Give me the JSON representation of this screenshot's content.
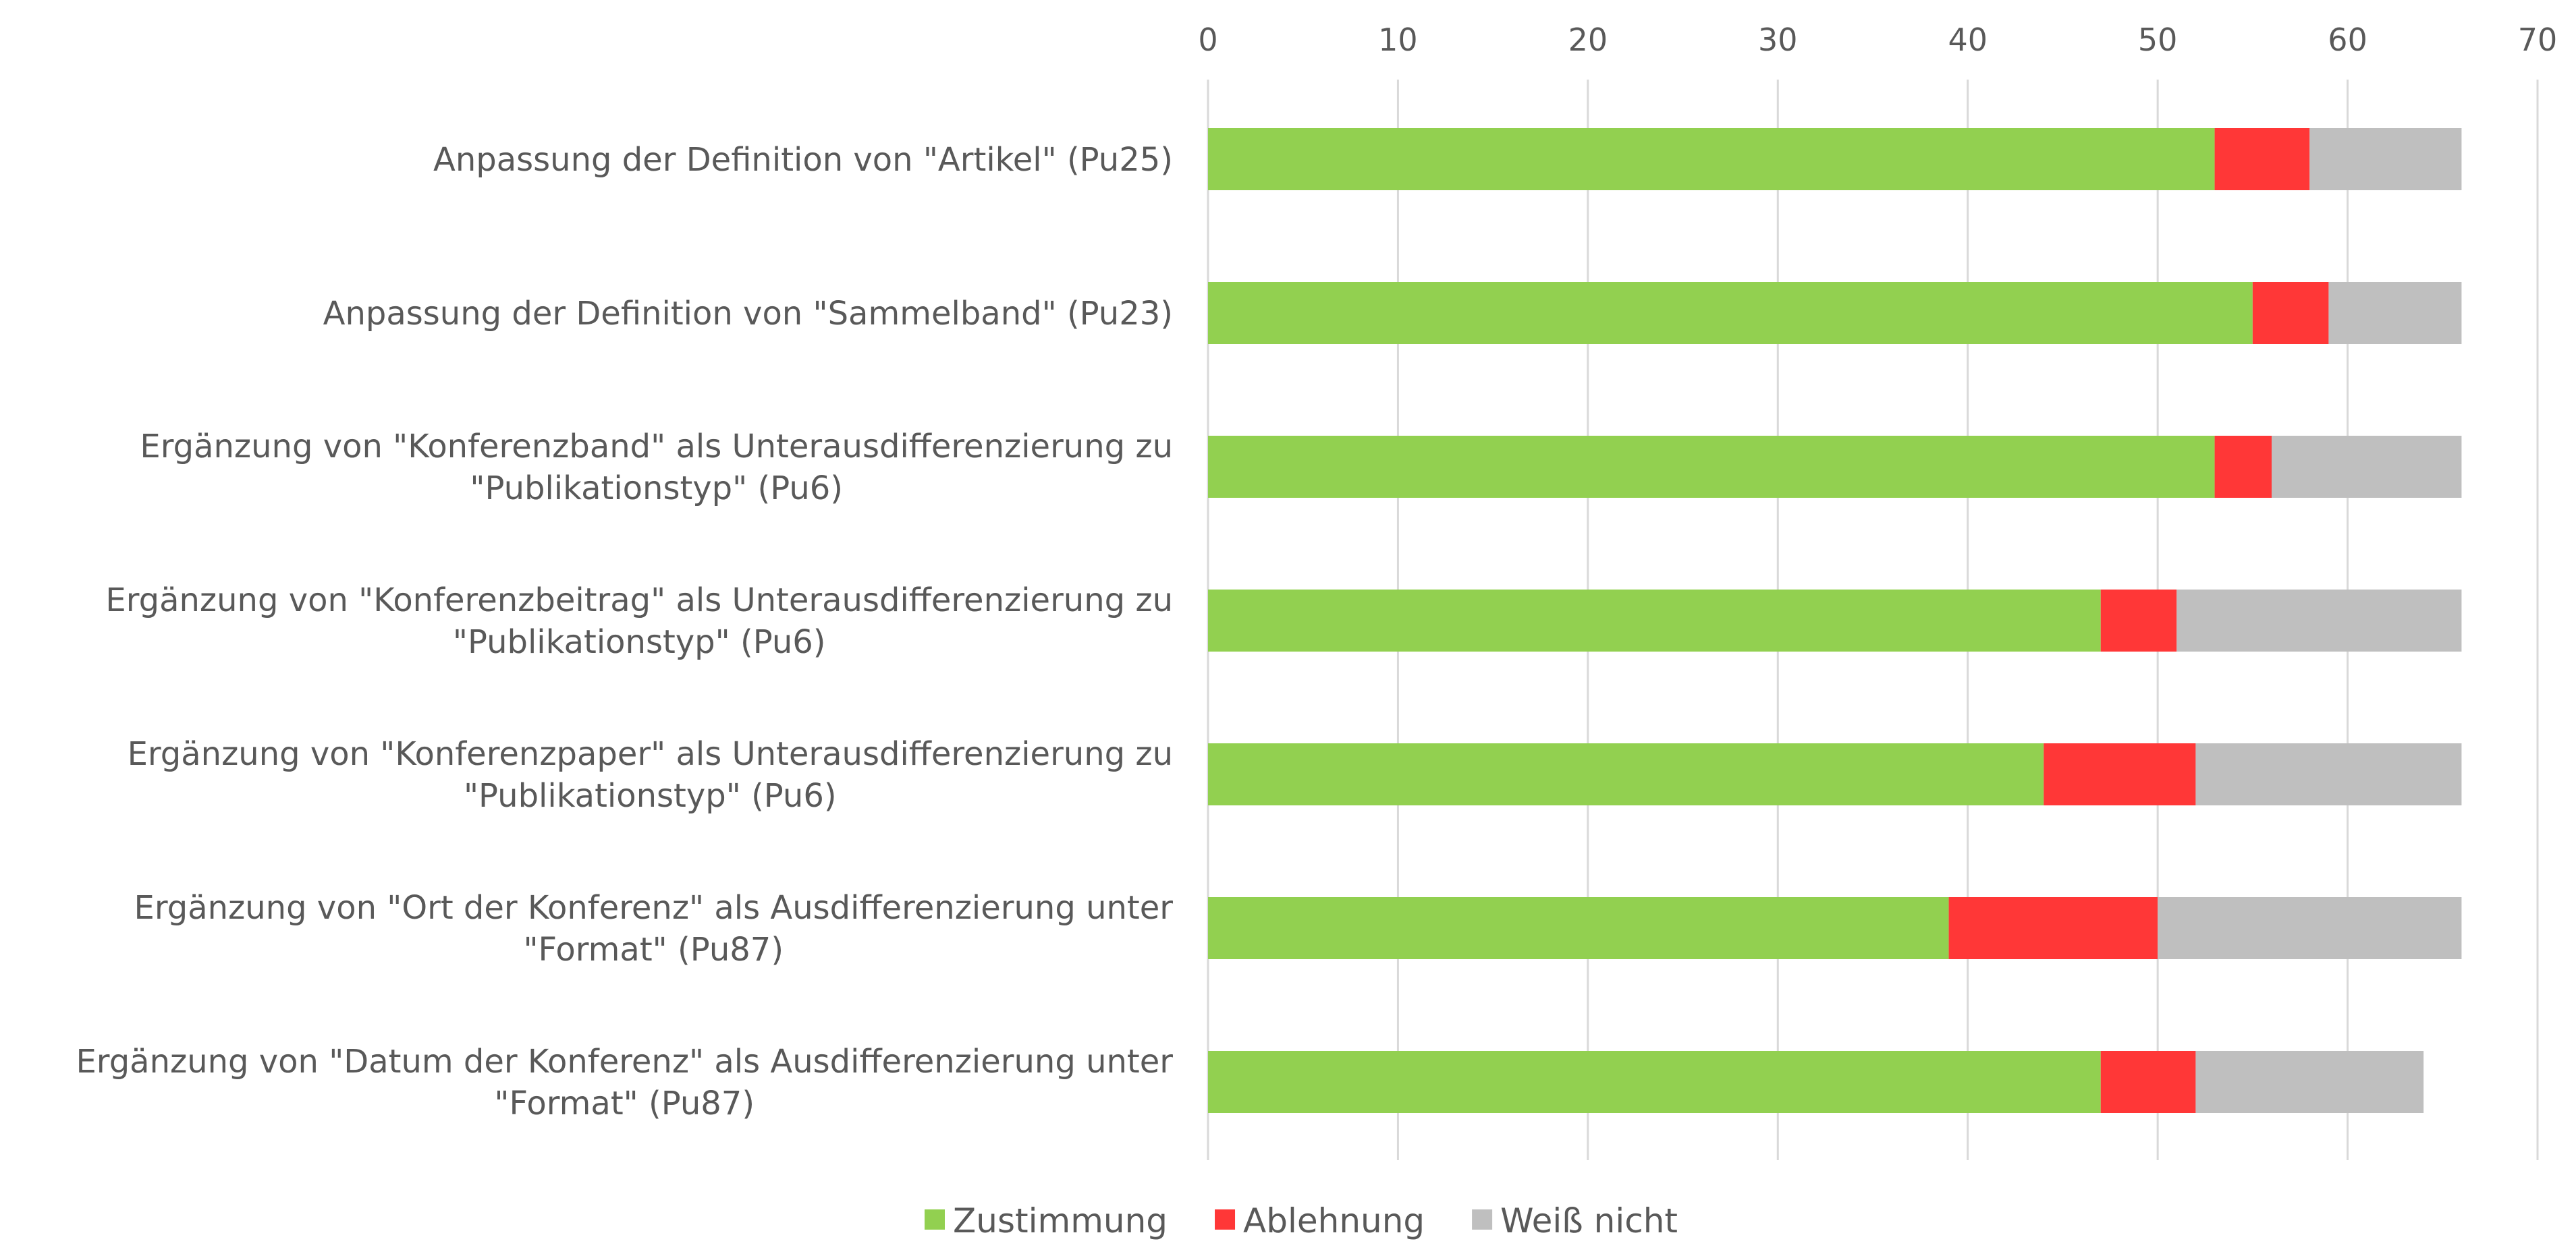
{
  "chart_data": {
    "type": "bar",
    "orientation": "horizontal",
    "stacked": true,
    "x_axis_position": "top",
    "grid": true,
    "legend_position": "bottom",
    "xlim": [
      0,
      70
    ],
    "xticks": [
      "0",
      "10",
      "20",
      "30",
      "40",
      "50",
      "60",
      "70"
    ],
    "categories": [
      [
        "Anpassung der Definition von \"Artikel\" (Pu25)"
      ],
      [
        "Anpassung der Definition von \"Sammelband\" (Pu23)"
      ],
      [
        "Ergänzung von \"Konferenzband\" als Unterausdifferenzierung zu",
        "\"Publikationstyp\" (Pu6)"
      ],
      [
        "Ergänzung von \"Konferenzbeitrag\" als Unterausdifferenzierung zu",
        "\"Publikationstyp\" (Pu6)"
      ],
      [
        "Ergänzung von \"Konferenzpaper\" als Unterausdifferenzierung zu",
        "\"Publikationstyp\" (Pu6)"
      ],
      [
        "Ergänzung von \"Ort der Konferenz\" als Ausdifferenzierung unter",
        "\"Format\" (Pu87)"
      ],
      [
        "Ergänzung von \"Datum der Konferenz\" als Ausdifferenzierung unter",
        "\"Format\" (Pu87)"
      ]
    ],
    "series": [
      {
        "name": "Zustimmung",
        "color": "#92d050",
        "values": [
          53,
          55,
          53,
          47,
          44,
          39,
          47
        ]
      },
      {
        "name": "Ablehnung",
        "color": "#ff3737",
        "values": [
          5,
          4,
          3,
          4,
          8,
          11,
          5
        ]
      },
      {
        "name": "Weiß nicht",
        "color": "#bfbfbf",
        "values": [
          8,
          7,
          10,
          15,
          14,
          16,
          12
        ]
      }
    ]
  }
}
